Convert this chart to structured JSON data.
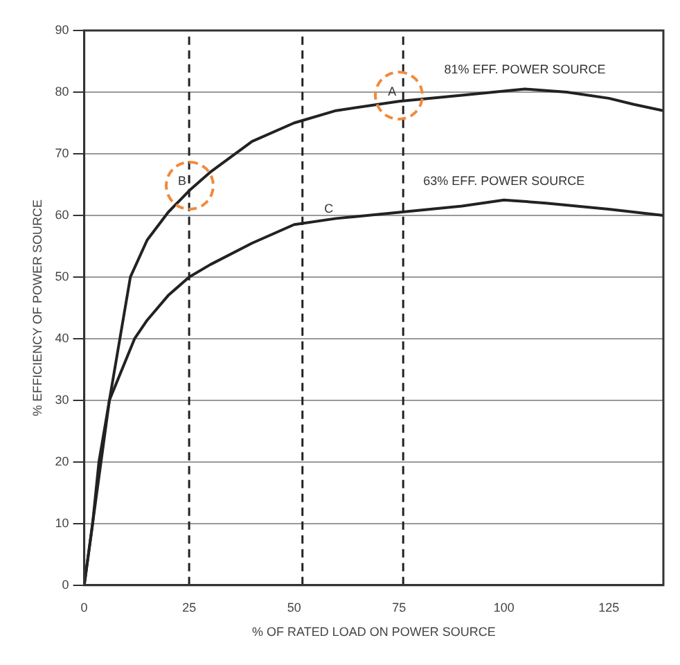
{
  "chart_data": {
    "type": "line",
    "xlabel": "% OF RATED LOAD ON POWER SOURCE",
    "ylabel": "% EFFICIENCY OF POWER SOURCE",
    "xlim": [
      0,
      138
    ],
    "xticks": [
      0,
      25,
      50,
      75,
      100,
      125
    ],
    "ylim": [
      0,
      90
    ],
    "yticks": [
      0,
      10,
      20,
      30,
      40,
      50,
      60,
      70,
      80,
      90
    ],
    "grid": "y",
    "legend": false,
    "marker": "none",
    "line_style": "solid",
    "series": [
      {
        "name": "81% EFF. POWER SOURCE",
        "color": "#222222",
        "x": [
          0,
          2,
          4,
          6,
          8.5,
          11,
          15,
          20,
          25,
          30,
          40,
          50,
          60,
          75,
          90,
          105,
          115,
          125,
          131,
          138
        ],
        "values": [
          0,
          10,
          20,
          30,
          40,
          50,
          56,
          60.5,
          64,
          67,
          72,
          75,
          77,
          78.5,
          79.5,
          80.5,
          80,
          79,
          78,
          77
        ]
      },
      {
        "name": "63% EFF. POWER SOURCE",
        "color": "#222222",
        "x": [
          0,
          2,
          3.5,
          6,
          12,
          15,
          20,
          25,
          30,
          40,
          50,
          60,
          75,
          90,
          100,
          110,
          125,
          138
        ],
        "values": [
          0,
          10,
          20,
          30,
          40,
          43,
          47,
          50,
          52,
          55.5,
          58.5,
          59.5,
          60.5,
          61.5,
          62.5,
          62,
          61,
          60
        ]
      }
    ],
    "ref_lines": [
      {
        "axis": "x",
        "value": 25,
        "line_style": "dashed",
        "color": "#222222"
      },
      {
        "axis": "x",
        "value": 52,
        "line_style": "dashed",
        "color": "#222222"
      },
      {
        "axis": "x",
        "value": 76,
        "line_style": "dashed",
        "color": "#222222"
      }
    ],
    "annotations": [
      {
        "text": "A",
        "x": 75,
        "y": 78.5
      },
      {
        "text": "B",
        "x": 25,
        "y": 64
      },
      {
        "text": "C",
        "x": 60,
        "y": 59.5
      }
    ]
  }
}
